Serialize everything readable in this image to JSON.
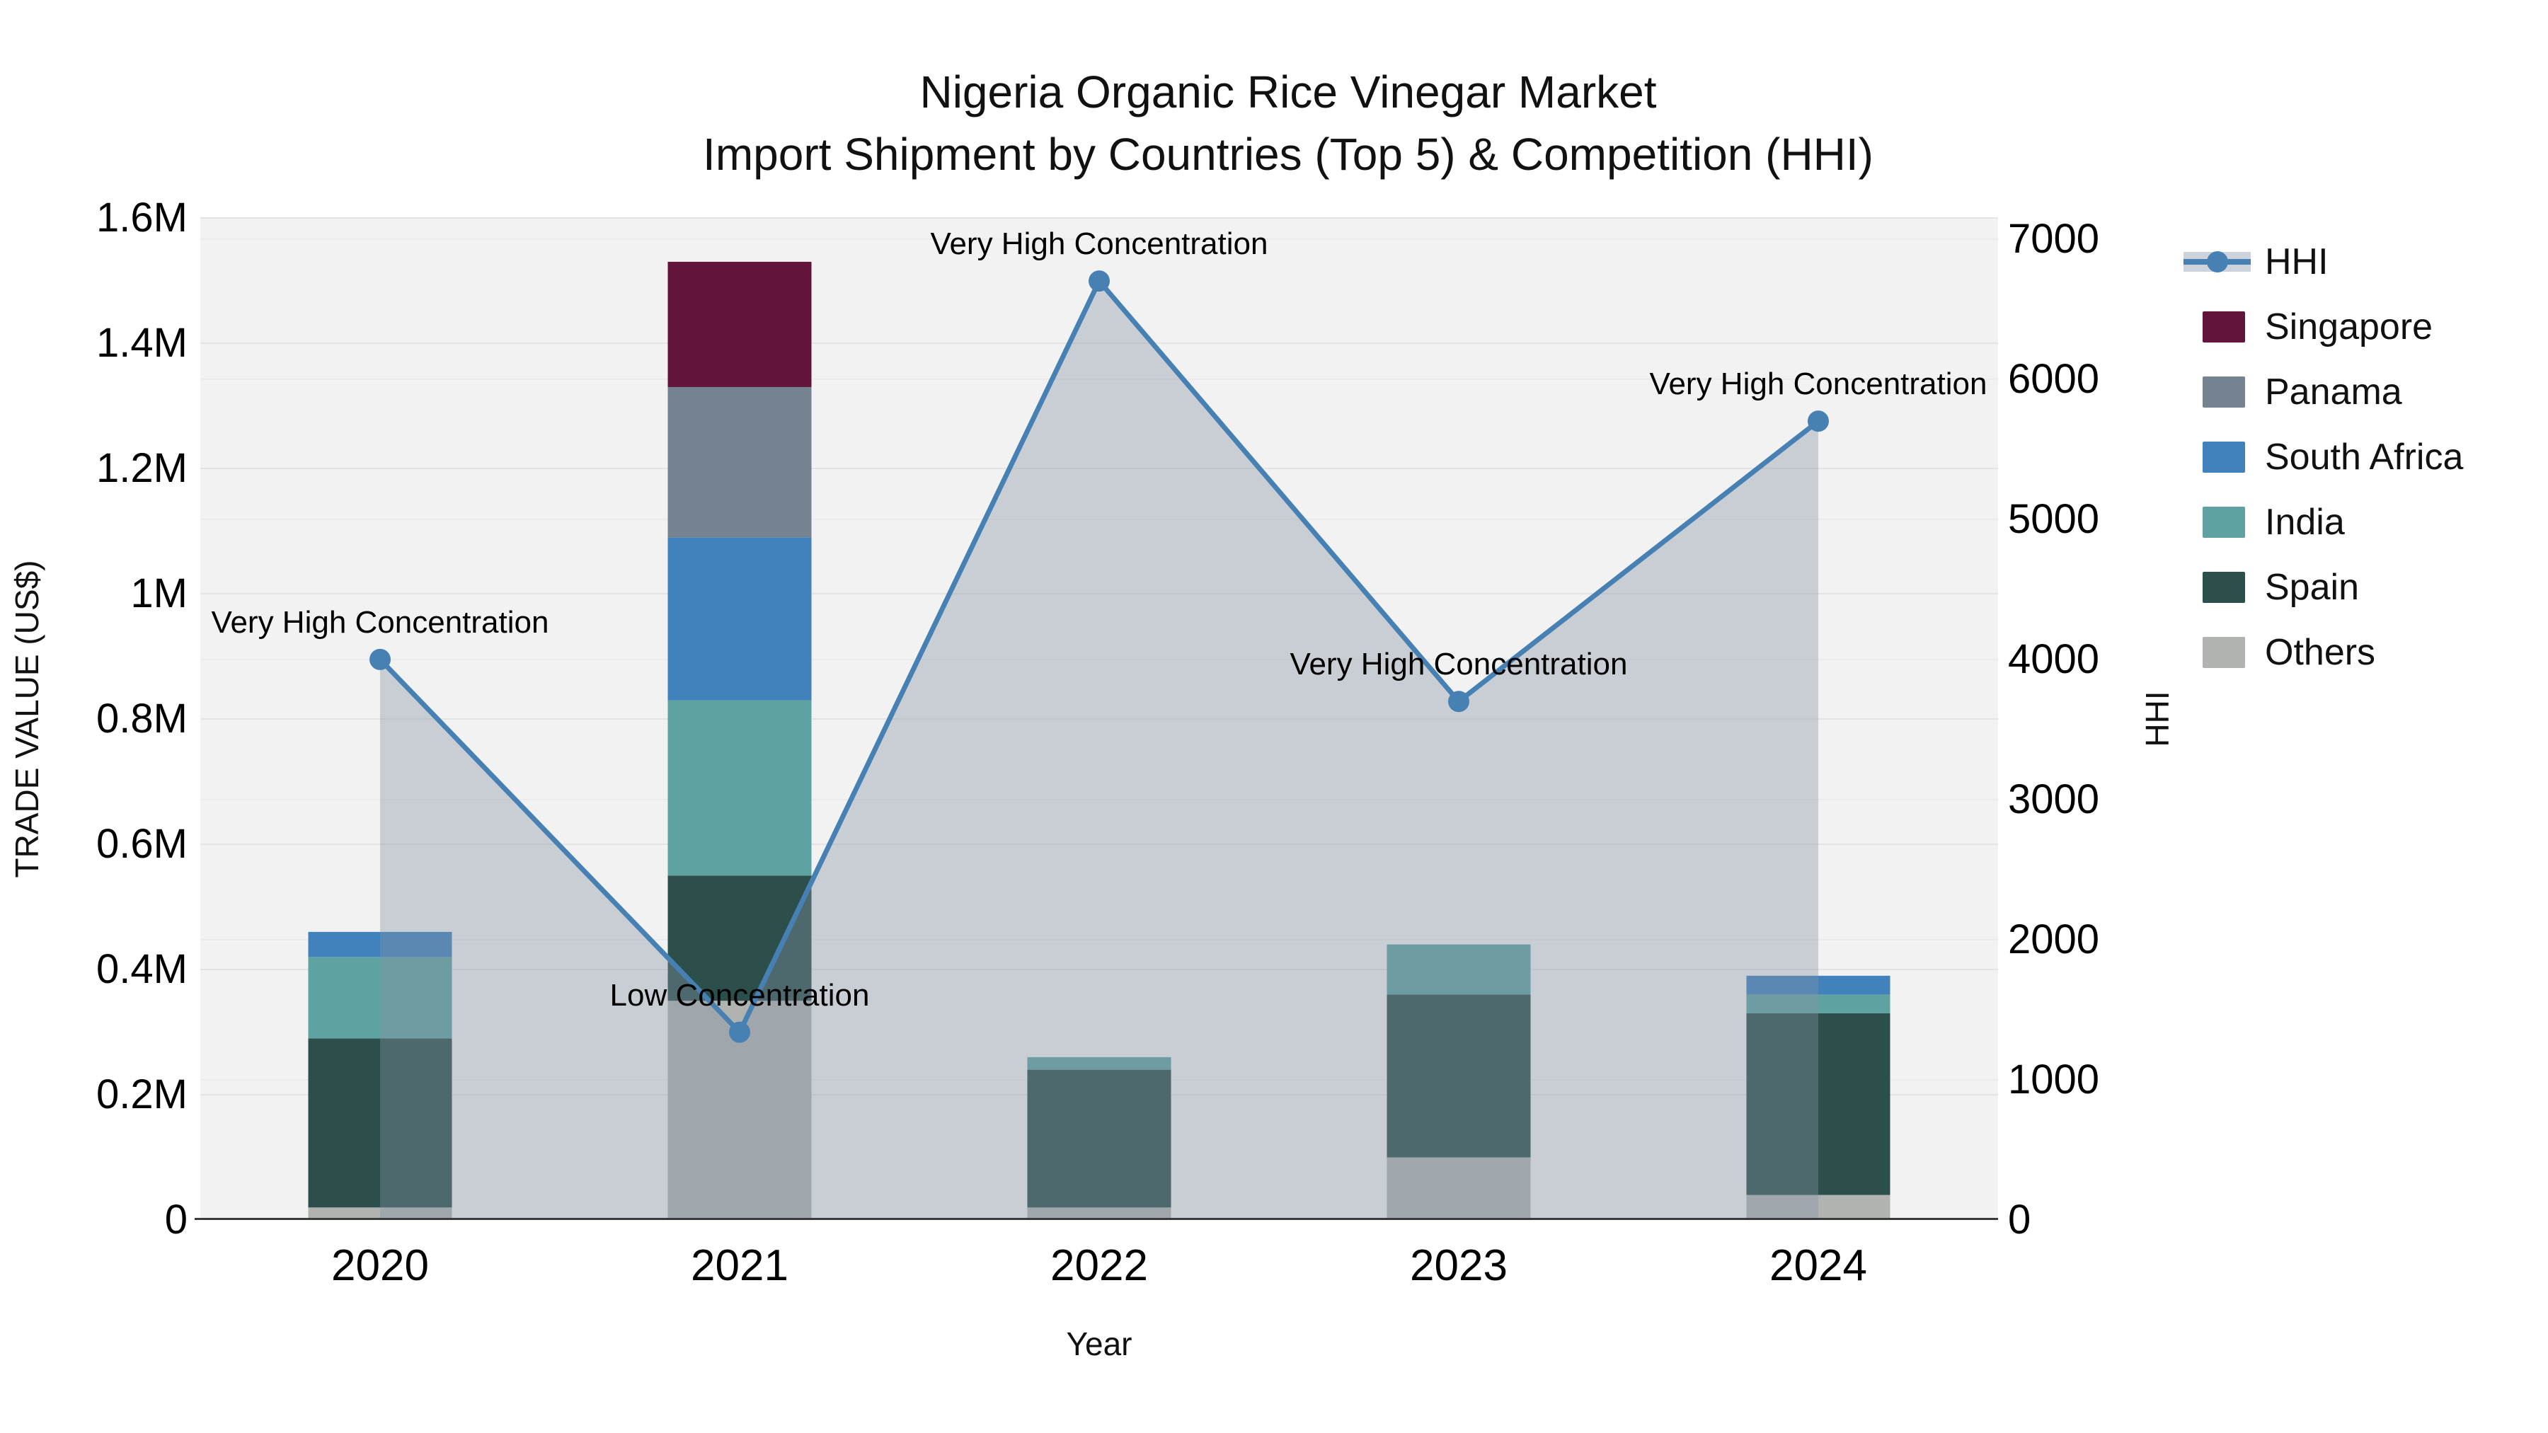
{
  "title": {
    "line1": "Nigeria Organic Rice Vinegar Market",
    "line2": "Import Shipment by Countries (Top 5) & Competition (HHI)"
  },
  "legend": {
    "items": [
      {
        "label": "HHI",
        "type": "line",
        "color": "#4781b4"
      },
      {
        "label": "Singapore",
        "type": "swatch",
        "color": "#62143a"
      },
      {
        "label": "Panama",
        "type": "swatch",
        "color": "#758391"
      },
      {
        "label": "South Africa",
        "type": "swatch",
        "color": "#4282bc"
      },
      {
        "label": "India",
        "type": "swatch",
        "color": "#5ea2a1"
      },
      {
        "label": "Spain",
        "type": "swatch",
        "color": "#2d4f4b"
      },
      {
        "label": "Others",
        "type": "swatch",
        "color": "#b1b3b1"
      }
    ]
  },
  "chart_data": {
    "type": "combo: stacked bar (trade value) + line with area fill (HHI)",
    "categories": [
      "2020",
      "2021",
      "2022",
      "2023",
      "2024"
    ],
    "series": [
      {
        "name": "Others",
        "color": "#b1b3b1",
        "values_musd": [
          0.02,
          0.35,
          0.02,
          0.1,
          0.04
        ]
      },
      {
        "name": "Spain",
        "color": "#2d4f4b",
        "values_musd": [
          0.27,
          0.2,
          0.22,
          0.26,
          0.29
        ]
      },
      {
        "name": "India",
        "color": "#5ea2a1",
        "values_musd": [
          0.13,
          0.28,
          0.02,
          0.08,
          0.03
        ]
      },
      {
        "name": "South Africa",
        "color": "#4282bc",
        "values_musd": [
          0.04,
          0.26,
          0.0,
          0.0,
          0.03
        ]
      },
      {
        "name": "Panama",
        "color": "#758391",
        "values_musd": [
          0.0,
          0.24,
          0.0,
          0.0,
          0.0
        ]
      },
      {
        "name": "Singapore",
        "color": "#62143a",
        "values_musd": [
          0.0,
          0.2,
          0.0,
          0.0,
          0.0
        ]
      }
    ],
    "line": {
      "name": "HHI",
      "color": "#4781b4",
      "area_fill": "rgba(133,148,166,0.38)",
      "values": [
        4000,
        1340,
        6700,
        3700,
        5700
      ]
    },
    "annotations": [
      {
        "category": "2020",
        "label": "Very High Concentration"
      },
      {
        "category": "2021",
        "label": "Low Concentration"
      },
      {
        "category": "2022",
        "label": "Very High Concentration"
      },
      {
        "category": "2023",
        "label": "Very High Concentration"
      },
      {
        "category": "2024",
        "label": "Very High Concentration"
      }
    ],
    "y_left": {
      "title": "TRADE VALUE (US$)",
      "max_musd": 1.6,
      "ticks": [
        {
          "v": 0.0,
          "label": "0"
        },
        {
          "v": 0.2,
          "label": "0.2M"
        },
        {
          "v": 0.4,
          "label": "0.4M"
        },
        {
          "v": 0.6,
          "label": "0.6M"
        },
        {
          "v": 0.8,
          "label": "0.8M"
        },
        {
          "v": 1.0,
          "label": "1M"
        },
        {
          "v": 1.2,
          "label": "1.2M"
        },
        {
          "v": 1.4,
          "label": "1.4M"
        },
        {
          "v": 1.6,
          "label": "1.6M"
        }
      ]
    },
    "y_right": {
      "title": "HHI",
      "axis_top_value": 7150,
      "ticks": [
        {
          "v": 0,
          "label": "0"
        },
        {
          "v": 1000,
          "label": "1000"
        },
        {
          "v": 2000,
          "label": "2000"
        },
        {
          "v": 3000,
          "label": "3000"
        },
        {
          "v": 4000,
          "label": "4000"
        },
        {
          "v": 5000,
          "label": "5000"
        },
        {
          "v": 6000,
          "label": "6000"
        },
        {
          "v": 7000,
          "label": "7000"
        }
      ]
    },
    "x": {
      "title": "Year"
    },
    "style": {
      "plot_bg": "#f2f2f2",
      "grid_left": "#e4e4e4",
      "grid_right": "#eaeaea",
      "spine": "#3a3a3a"
    }
  }
}
